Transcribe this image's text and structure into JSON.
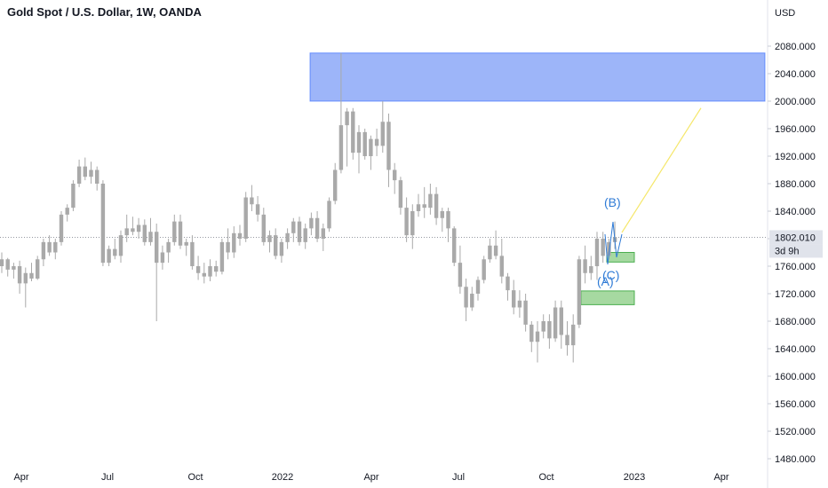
{
  "chart_data": {
    "type": "candlestick",
    "title": "Gold Spot / U.S. Dollar, 1W, OANDA",
    "currency": "USD",
    "ylim": [
      1460,
      2100
    ],
    "yticks": [
      2080,
      2040,
      2000,
      1960,
      1920,
      1880,
      1840,
      1800,
      1760,
      1720,
      1680,
      1640,
      1600,
      1560,
      1520,
      1480
    ],
    "xlabels": [
      "Apr",
      "Jul",
      "Oct",
      "2022",
      "Apr",
      "Jul",
      "Oct",
      "2023",
      "Apr"
    ],
    "last_price": "1802.010",
    "countdown": "3d 9h",
    "candle_color": "#a9a9a9",
    "series": [
      [
        1760,
        1780,
        1750,
        1770
      ],
      [
        1770,
        1772,
        1745,
        1755
      ],
      [
        1755,
        1765,
        1742,
        1760
      ],
      [
        1760,
        1768,
        1720,
        1735
      ],
      [
        1735,
        1758,
        1700,
        1750
      ],
      [
        1750,
        1765,
        1738,
        1742
      ],
      [
        1742,
        1775,
        1740,
        1770
      ],
      [
        1770,
        1800,
        1760,
        1795
      ],
      [
        1795,
        1805,
        1775,
        1780
      ],
      [
        1780,
        1800,
        1770,
        1795
      ],
      [
        1795,
        1840,
        1790,
        1835
      ],
      [
        1835,
        1850,
        1825,
        1845
      ],
      [
        1845,
        1885,
        1840,
        1880
      ],
      [
        1880,
        1915,
        1875,
        1905
      ],
      [
        1905,
        1918,
        1885,
        1890
      ],
      [
        1890,
        1912,
        1880,
        1900
      ],
      [
        1900,
        1905,
        1870,
        1880
      ],
      [
        1880,
        1885,
        1760,
        1765
      ],
      [
        1765,
        1790,
        1760,
        1785
      ],
      [
        1785,
        1800,
        1770,
        1775
      ],
      [
        1775,
        1812,
        1765,
        1805
      ],
      [
        1805,
        1835,
        1795,
        1815
      ],
      [
        1815,
        1832,
        1805,
        1810
      ],
      [
        1810,
        1830,
        1800,
        1820
      ],
      [
        1820,
        1828,
        1790,
        1795
      ],
      [
        1795,
        1830,
        1790,
        1810
      ],
      [
        1810,
        1822,
        1680,
        1765
      ],
      [
        1765,
        1790,
        1755,
        1780
      ],
      [
        1780,
        1800,
        1765,
        1795
      ],
      [
        1795,
        1835,
        1790,
        1825
      ],
      [
        1825,
        1835,
        1785,
        1790
      ],
      [
        1790,
        1800,
        1775,
        1795
      ],
      [
        1795,
        1805,
        1755,
        1760
      ],
      [
        1760,
        1775,
        1740,
        1750
      ],
      [
        1750,
        1765,
        1735,
        1745
      ],
      [
        1745,
        1770,
        1738,
        1760
      ],
      [
        1760,
        1768,
        1745,
        1752
      ],
      [
        1752,
        1800,
        1748,
        1795
      ],
      [
        1795,
        1815,
        1770,
        1780
      ],
      [
        1780,
        1818,
        1772,
        1808
      ],
      [
        1808,
        1820,
        1790,
        1800
      ],
      [
        1800,
        1868,
        1795,
        1860
      ],
      [
        1860,
        1878,
        1840,
        1850
      ],
      [
        1850,
        1862,
        1825,
        1835
      ],
      [
        1835,
        1845,
        1790,
        1795
      ],
      [
        1795,
        1812,
        1780,
        1805
      ],
      [
        1805,
        1815,
        1770,
        1775
      ],
      [
        1775,
        1800,
        1765,
        1795
      ],
      [
        1795,
        1815,
        1785,
        1808
      ],
      [
        1808,
        1830,
        1795,
        1825
      ],
      [
        1825,
        1832,
        1790,
        1795
      ],
      [
        1795,
        1822,
        1785,
        1815
      ],
      [
        1815,
        1838,
        1805,
        1830
      ],
      [
        1830,
        1840,
        1795,
        1800
      ],
      [
        1800,
        1822,
        1782,
        1815
      ],
      [
        1815,
        1860,
        1810,
        1855
      ],
      [
        1855,
        1910,
        1850,
        1900
      ],
      [
        1900,
        2070,
        1895,
        1965
      ],
      [
        1965,
        1990,
        1905,
        1985
      ],
      [
        1985,
        1990,
        1915,
        1925
      ],
      [
        1925,
        1965,
        1895,
        1955
      ],
      [
        1955,
        1960,
        1915,
        1920
      ],
      [
        1920,
        1950,
        1900,
        1945
      ],
      [
        1945,
        1960,
        1920,
        1935
      ],
      [
        1935,
        2000,
        1925,
        1970
      ],
      [
        1970,
        1982,
        1875,
        1900
      ],
      [
        1900,
        1910,
        1865,
        1885
      ],
      [
        1885,
        1890,
        1835,
        1845
      ],
      [
        1845,
        1860,
        1795,
        1805
      ],
      [
        1805,
        1850,
        1785,
        1840
      ],
      [
        1840,
        1865,
        1832,
        1850
      ],
      [
        1850,
        1875,
        1830,
        1845
      ],
      [
        1845,
        1880,
        1835,
        1865
      ],
      [
        1865,
        1875,
        1820,
        1830
      ],
      [
        1830,
        1845,
        1810,
        1840
      ],
      [
        1840,
        1845,
        1795,
        1815
      ],
      [
        1815,
        1818,
        1760,
        1765
      ],
      [
        1765,
        1790,
        1720,
        1730
      ],
      [
        1730,
        1742,
        1680,
        1700
      ],
      [
        1700,
        1730,
        1695,
        1720
      ],
      [
        1720,
        1745,
        1710,
        1740
      ],
      [
        1740,
        1775,
        1735,
        1770
      ],
      [
        1770,
        1800,
        1765,
        1790
      ],
      [
        1790,
        1812,
        1770,
        1775
      ],
      [
        1775,
        1800,
        1735,
        1745
      ],
      [
        1745,
        1750,
        1710,
        1725
      ],
      [
        1725,
        1740,
        1690,
        1700
      ],
      [
        1700,
        1725,
        1685,
        1710
      ],
      [
        1710,
        1720,
        1665,
        1675
      ],
      [
        1675,
        1680,
        1635,
        1650
      ],
      [
        1650,
        1680,
        1620,
        1665
      ],
      [
        1665,
        1690,
        1655,
        1680
      ],
      [
        1680,
        1690,
        1640,
        1655
      ],
      [
        1655,
        1710,
        1650,
        1700
      ],
      [
        1700,
        1710,
        1640,
        1660
      ],
      [
        1660,
        1680,
        1630,
        1645
      ],
      [
        1645,
        1690,
        1620,
        1675
      ],
      [
        1675,
        1775,
        1670,
        1770
      ],
      [
        1770,
        1790,
        1735,
        1750
      ],
      [
        1750,
        1775,
        1740,
        1760
      ],
      [
        1760,
        1810,
        1740,
        1800
      ],
      [
        1800,
        1810,
        1765,
        1775
      ],
      [
        1775,
        1800,
        1770,
        1795
      ],
      [
        1795,
        1825,
        1785,
        1802
      ]
    ],
    "annotations": {
      "resistance_zone": {
        "from": 2000,
        "to": 2070,
        "color": "#9db5f9"
      },
      "support_zones": [
        {
          "from": 1766,
          "to": 1780,
          "color": "#a6d9a1"
        },
        {
          "from": 1704,
          "to": 1724,
          "color": "#a6d9a1"
        }
      ],
      "wave_labels": [
        "(B)",
        "(A)",
        "(C)"
      ],
      "projection_target": 1990
    }
  }
}
